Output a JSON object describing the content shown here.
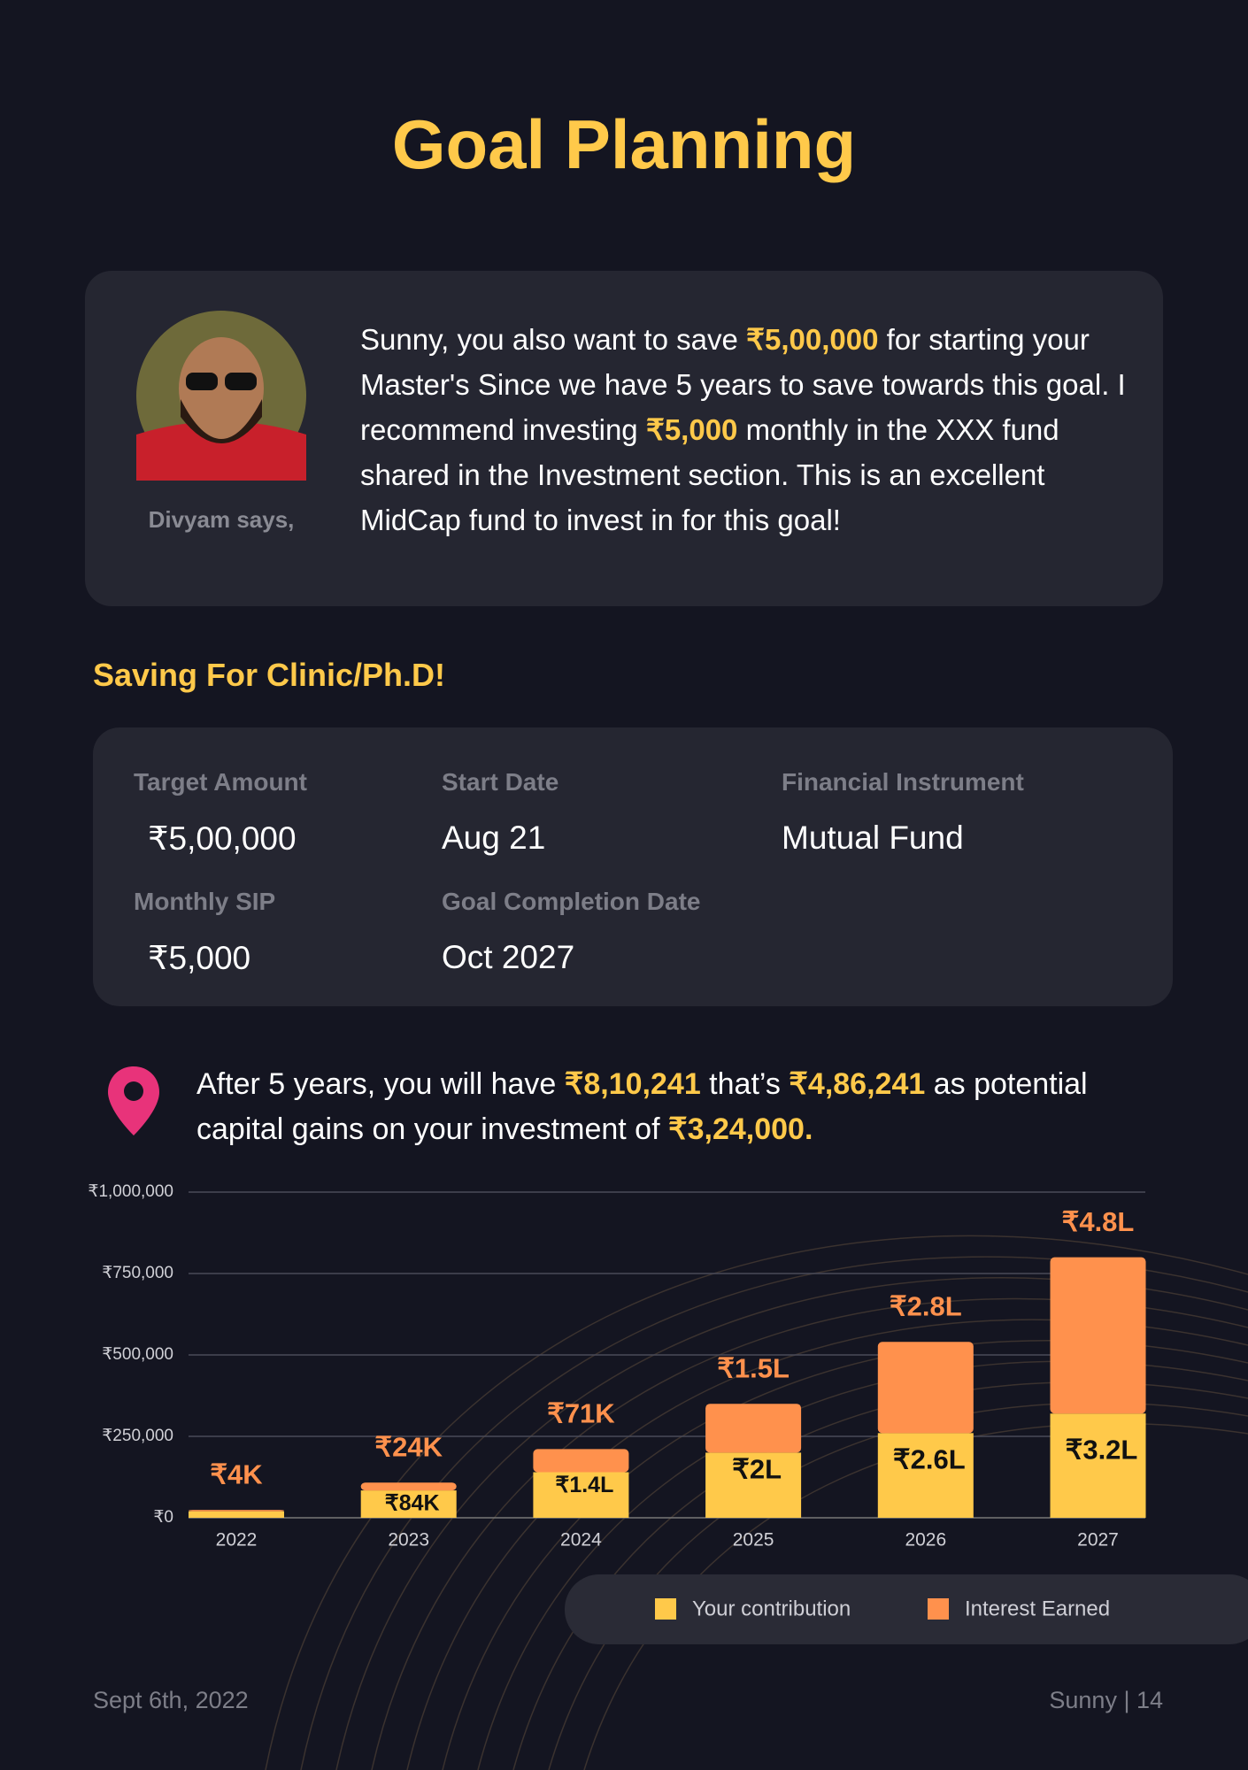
{
  "header": {
    "title": "Goal Planning"
  },
  "advisor": {
    "name": "Divyam says,",
    "message": [
      "Sunny, you also want to save ",
      "₹5,00,000",
      " for starting your Master's Since we have 5 years to save towards this goal. I recommend investing ",
      "₹5,000",
      " monthly in the XXX fund shared in the Investment section. This is an excellent MidCap fund to invest in for this goal!"
    ]
  },
  "goal": {
    "title": "Saving For Clinic/Ph.D!",
    "fields": [
      {
        "label": "Target Amount",
        "value": "₹5,00,000"
      },
      {
        "label": "Start Date",
        "value": "Aug 21"
      },
      {
        "label": "Financial Instrument",
        "value": "Mutual Fund"
      },
      {
        "label": "Monthly SIP",
        "value": "₹5,000"
      },
      {
        "label": "Goal Completion Date",
        "value": "Oct 2027"
      }
    ]
  },
  "summary": [
    "After 5 years, you will have ",
    "₹8,10,241",
    " that’s ",
    "₹4,86,241",
    " as potential capital gains on your investment of ",
    "₹3,24,000."
  ],
  "chart_data": {
    "type": "stacked_bar",
    "categories": [
      "2022",
      "2023",
      "2024",
      "2025",
      "2026",
      "2027"
    ],
    "series": [
      {
        "name": "Your contribution",
        "color": "#ffc94a",
        "values": [
          20000,
          84000,
          140000,
          200000,
          260000,
          320000
        ],
        "value_labels": [
          null,
          "₹84K",
          "₹1.4L",
          "₹2L",
          "₹2.6L",
          "₹3.2L"
        ]
      },
      {
        "name": "Interest Earned",
        "color": "#ff914d",
        "values": [
          4000,
          24000,
          71000,
          150000,
          280000,
          480000
        ],
        "value_labels": [
          "₹4K",
          "₹24K",
          "₹71K",
          "₹1.5L",
          "₹2.8L",
          "₹4.8L"
        ]
      }
    ],
    "ylim": [
      0,
      1000000
    ],
    "yticks": [
      {
        "value": 0,
        "label": "₹0"
      },
      {
        "value": 250000,
        "label": "₹250,000"
      },
      {
        "value": 500000,
        "label": "₹500,000"
      },
      {
        "value": 750000,
        "label": "₹750,000"
      },
      {
        "value": 1000000,
        "label": "₹1,000,000"
      }
    ],
    "grid": true
  },
  "footer": {
    "date": "Sept 6th, 2022",
    "page": "Sunny | 14"
  }
}
